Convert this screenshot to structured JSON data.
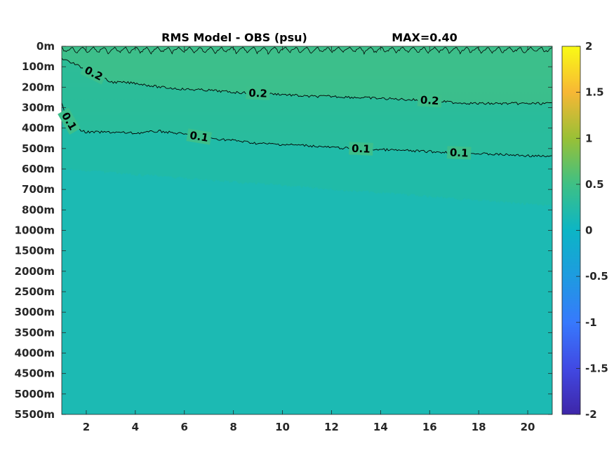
{
  "chart_data": {
    "type": "heatmap",
    "title": "RMS Model - OBS (psu)",
    "annotation": "MAX=0.40",
    "x": {
      "range": [
        1,
        21
      ],
      "ticks": [
        2,
        4,
        6,
        8,
        10,
        12,
        14,
        16,
        18,
        20
      ],
      "tick_labels": [
        "2",
        "4",
        "6",
        "8",
        "10",
        "12",
        "14",
        "16",
        "18",
        "20"
      ]
    },
    "y": {
      "reversed": true,
      "tick_labels": [
        "0m",
        "100m",
        "200m",
        "300m",
        "400m",
        "500m",
        "600m",
        "700m",
        "800m",
        "1000m",
        "1500m",
        "2000m",
        "2500m",
        "3000m",
        "3500m",
        "4000m",
        "4500m",
        "5000m",
        "5500m"
      ]
    },
    "colorbar": {
      "range": [
        -2,
        2
      ],
      "ticks": [
        2,
        1.5,
        1,
        0.5,
        0,
        -0.5,
        -1,
        -1.5,
        -2
      ],
      "tick_labels": [
        "2",
        "1.5",
        "1",
        "0.5",
        "0",
        "-0.5",
        "-1",
        "-1.5",
        "-2"
      ],
      "colormap": "parula"
    },
    "contours": [
      {
        "level": 0.2,
        "label": "0.2",
        "x": [
          1,
          1.5,
          2,
          3,
          4,
          5,
          6,
          7,
          8,
          9,
          10,
          11,
          12,
          13,
          14,
          15,
          16,
          17,
          18,
          19,
          20,
          21
        ],
        "y_depth_index": [
          0.6,
          0.85,
          1.15,
          1.75,
          1.8,
          2.0,
          2.1,
          2.15,
          2.25,
          2.3,
          2.35,
          2.45,
          2.45,
          2.5,
          2.55,
          2.6,
          2.65,
          2.75,
          2.8,
          2.8,
          2.8,
          2.8
        ],
        "label_x": [
          2.3,
          9.0,
          16.0
        ]
      },
      {
        "level": 0.1,
        "label": "0.1",
        "x": [
          1,
          1.2,
          1.5,
          2,
          3,
          4,
          5,
          6,
          7,
          8,
          9,
          10,
          11,
          12,
          13,
          14,
          15,
          16,
          17,
          18,
          19,
          20,
          21
        ],
        "y_depth_index": [
          2.8,
          3.5,
          4.0,
          4.2,
          4.2,
          4.25,
          4.15,
          4.3,
          4.5,
          4.6,
          4.75,
          4.8,
          4.85,
          4.95,
          5.0,
          5.05,
          5.1,
          5.15,
          5.2,
          5.25,
          5.3,
          5.35,
          5.4
        ],
        "label_x": [
          1.3,
          6.6,
          13.2,
          17.2
        ]
      }
    ],
    "field_bands": [
      {
        "depth_index_range": [
          0,
          2.2
        ],
        "value": 0.28
      },
      {
        "depth_index_range": [
          2.2,
          4.5
        ],
        "value": 0.18
      },
      {
        "depth_index_range": [
          4.5,
          7.5
        ],
        "value": 0.1
      },
      {
        "depth_index_range": [
          7.5,
          18
        ],
        "value": 0.03
      }
    ]
  }
}
